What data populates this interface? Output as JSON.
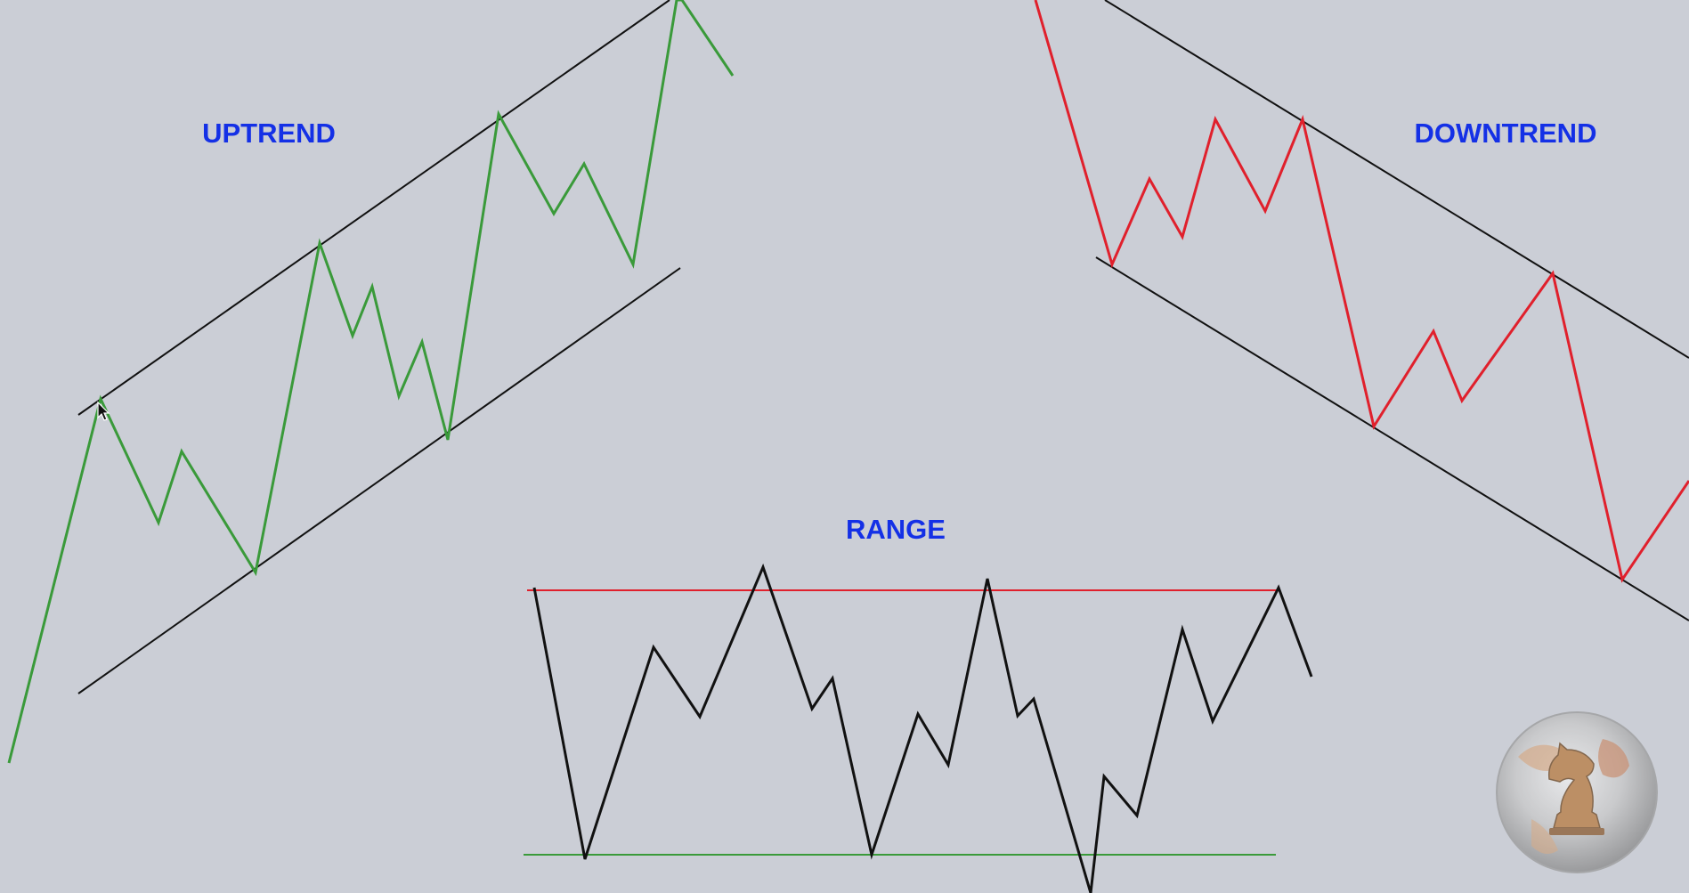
{
  "titles": {
    "uptrend": "UPTREND",
    "downtrend": "DOWNTREND",
    "range": "RANGE"
  },
  "colors": {
    "background": "#cbced6",
    "uptrend_price": "#3a9a3a",
    "downtrend_price": "#e0202c",
    "range_price": "#111111",
    "trendline": "#111111",
    "resistance": "#e0202c",
    "support": "#3a9a3a",
    "label": "#1430e6"
  },
  "icons": {
    "cursor": "mouse-pointer-icon",
    "logo": "knight-globe-logo"
  }
}
